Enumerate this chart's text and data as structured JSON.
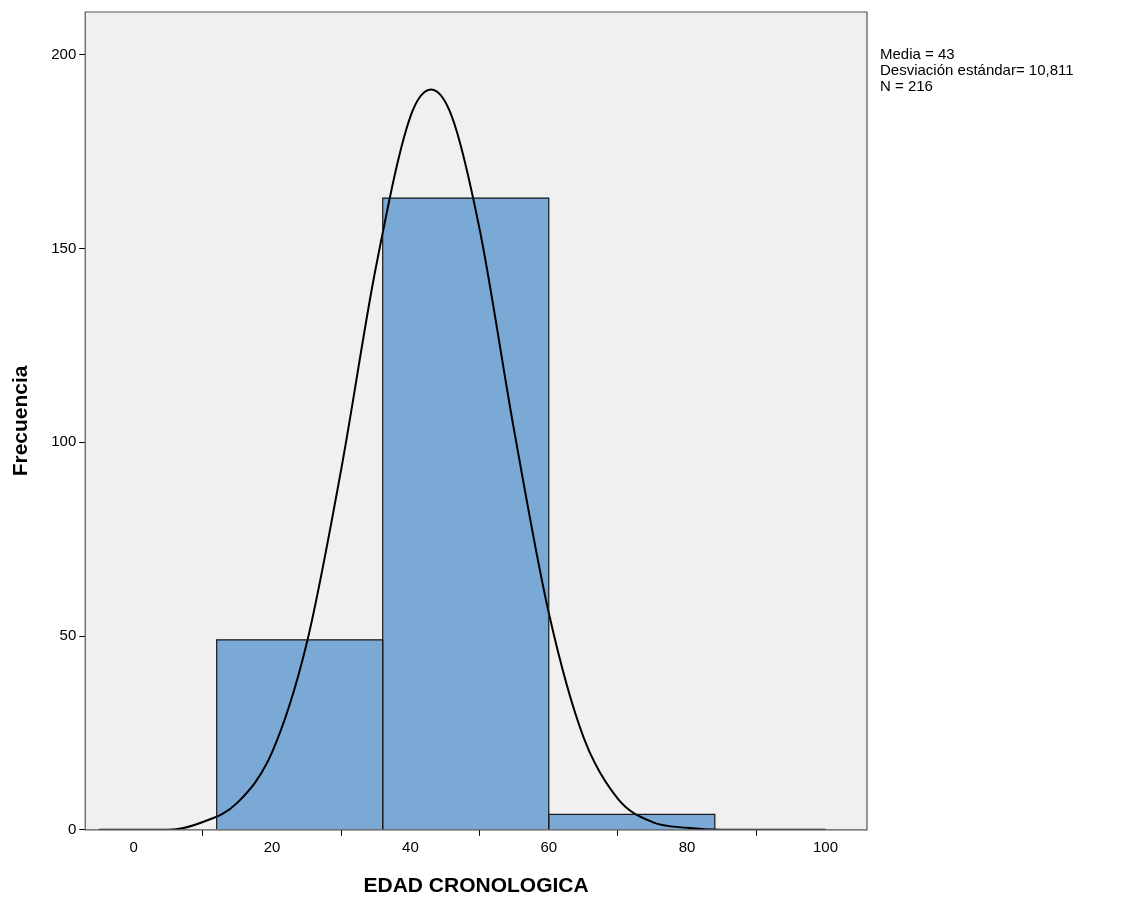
{
  "chart_data": {
    "type": "histogram",
    "xlabel": "EDAD CRONOLOGICA",
    "ylabel": "Frecuencia",
    "bins": [
      12,
      36,
      60,
      84
    ],
    "values": [
      49,
      163,
      4
    ],
    "color": "#7aa9d6",
    "series": [
      {
        "type": "line",
        "color": "#000000",
        "x": [
          -5,
          0,
          5,
          10,
          15,
          20,
          25,
          30,
          35,
          40,
          43,
          46,
          50,
          55,
          60,
          65,
          70,
          75,
          80,
          85,
          90,
          100
        ],
        "values": [
          0,
          0,
          0,
          2,
          7,
          20,
          48,
          93,
          145,
          184,
          191,
          184,
          155,
          103,
          56,
          24,
          8,
          2,
          0.5,
          0,
          0,
          0
        ]
      }
    ],
    "xlim": [
      -7,
      106
    ],
    "xticks": [
      0,
      20,
      40,
      60,
      80,
      100
    ],
    "ylim": [
      0,
      211
    ],
    "yticks": [
      0,
      50,
      100,
      150,
      200
    ],
    "grid": false,
    "legend": false,
    "annotations": [
      "Media = 43",
      "Desviación estándar= 10,811",
      "N = 216"
    ]
  }
}
